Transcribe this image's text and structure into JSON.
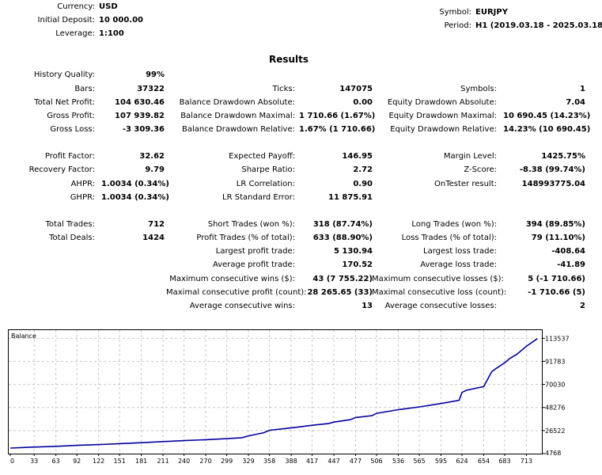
{
  "header": {
    "currency_label": "Currency:",
    "currency_value": "USD",
    "deposit_label": "Initial Deposit:",
    "deposit_value": "10 000.00",
    "leverage_label": "Leverage:",
    "leverage_value": "1:100",
    "symbol_label": "Symbol:",
    "symbol_value": "EURJPY",
    "period_label": "Period:",
    "period_value": "H1 (2019.03.18 - 2025.03.18)"
  },
  "results": {
    "title": "Results",
    "history_quality_label": "History Quality:",
    "history_quality_value": "99%",
    "bars_label": "Bars:",
    "bars_value": "37322",
    "ticks_label": "Ticks:",
    "ticks_value": "147075",
    "symbols_label": "Symbols:",
    "symbols_value": "1",
    "net_profit_label": "Total Net Profit:",
    "net_profit_value": "104 630.46",
    "bal_dd_abs_label": "Balance Drawdown Absolute:",
    "bal_dd_abs_value": "0.00",
    "eq_dd_abs_label": "Equity Drawdown Absolute:",
    "eq_dd_abs_value": "7.04",
    "gross_profit_label": "Gross Profit:",
    "gross_profit_value": "107 939.82",
    "bal_dd_max_label": "Balance Drawdown Maximal:",
    "bal_dd_max_value": "1 710.66 (1.67%)",
    "eq_dd_max_label": "Equity Drawdown Maximal:",
    "eq_dd_max_value": "10 690.45 (14.23%)",
    "gross_loss_label": "Gross Loss:",
    "gross_loss_value": "-3 309.36",
    "bal_dd_rel_label": "Balance Drawdown Relative:",
    "bal_dd_rel_value": "1.67% (1 710.66)",
    "eq_dd_rel_label": "Equity Drawdown Relative:",
    "eq_dd_rel_value": "14.23% (10 690.45)",
    "profit_factor_label": "Profit Factor:",
    "profit_factor_value": "32.62",
    "expected_payoff_label": "Expected Payoff:",
    "expected_payoff_value": "146.95",
    "margin_level_label": "Margin Level:",
    "margin_level_value": "1425.75%",
    "recovery_factor_label": "Recovery Factor:",
    "recovery_factor_value": "9.79",
    "sharpe_label": "Sharpe Ratio:",
    "sharpe_value": "2.72",
    "zscore_label": "Z-Score:",
    "zscore_value": "-8.38 (99.74%)",
    "ahpr_label": "AHPR:",
    "ahpr_value": "1.0034 (0.34%)",
    "lr_corr_label": "LR Correlation:",
    "lr_corr_value": "0.90",
    "ontester_label": "OnTester result:",
    "ontester_value": "148993775.04",
    "ghpr_label": "GHPR:",
    "ghpr_value": "1.0034 (0.34%)",
    "lr_se_label": "LR Standard Error:",
    "lr_se_value": "11 875.91",
    "total_trades_label": "Total Trades:",
    "total_trades_value": "712",
    "short_trades_label": "Short Trades (won %):",
    "short_trades_value": "318 (87.74%)",
    "long_trades_label": "Long Trades (won %):",
    "long_trades_value": "394 (89.85%)",
    "total_deals_label": "Total Deals:",
    "total_deals_value": "1424",
    "profit_trades_label": "Profit Trades (% of total):",
    "profit_trades_value": "633 (88.90%)",
    "loss_trades_label": "Loss Trades (% of total):",
    "loss_trades_value": "79 (11.10%)",
    "largest_profit_label": "Largest profit trade:",
    "largest_profit_value": "5 130.94",
    "largest_loss_label": "Largest loss trade:",
    "largest_loss_value": "-408.64",
    "avg_profit_label": "Average profit trade:",
    "avg_profit_value": "170.52",
    "avg_loss_label": "Average loss trade:",
    "avg_loss_value": "-41.89",
    "max_consec_wins_label": "Maximum consecutive wins ($):",
    "max_consec_wins_value": "43 (7 755.22)",
    "max_consec_losses_label": "Maximum consecutive losses ($):",
    "max_consec_losses_value": "5 (-1 710.66)",
    "maximal_consec_profit_label": "Maximal consecutive profit (count):",
    "maximal_consec_profit_value": "28 265.65 (33)",
    "maximal_consec_loss_label": "Maximal consecutive loss (count):",
    "maximal_consec_loss_value": "-1 710.66 (5)",
    "avg_consec_wins_label": "Average consecutive wins:",
    "avg_consec_wins_value": "13",
    "avg_consec_losses_label": "Average consecutive losses:",
    "avg_consec_losses_value": "2"
  },
  "chart_data": {
    "type": "line",
    "title": "Balance",
    "xlim": [
      0,
      730
    ],
    "ylim": [
      4768,
      120500
    ],
    "x_ticks": [
      0,
      33,
      63,
      92,
      122,
      151,
      181,
      211,
      240,
      270,
      299,
      329,
      358,
      388,
      417,
      447,
      477,
      506,
      536,
      565,
      595,
      624,
      654,
      683,
      713
    ],
    "y_ticks": [
      4768,
      26522,
      48276,
      70030,
      91783,
      113537
    ],
    "series": [
      {
        "name": "Balance",
        "color": "#0000a0",
        "x": [
          0,
          30,
          63,
          92,
          122,
          151,
          181,
          211,
          240,
          270,
          299,
          320,
          329,
          350,
          358,
          380,
          400,
          417,
          440,
          447,
          470,
          477,
          500,
          506,
          536,
          565,
          595,
          620,
          624,
          630,
          654,
          665,
          670,
          683,
          690,
          700,
          713,
          728
        ],
        "y": [
          10000,
          10900,
          11600,
          12500,
          13300,
          14200,
          15100,
          16100,
          17000,
          17900,
          18900,
          19800,
          21500,
          24500,
          26800,
          28400,
          30000,
          31500,
          33200,
          34500,
          36800,
          38800,
          40600,
          42800,
          46200,
          48800,
          52000,
          55000,
          62500,
          64500,
          68000,
          82000,
          84500,
          90500,
          94500,
          98500,
          106000,
          113200
        ]
      }
    ]
  }
}
